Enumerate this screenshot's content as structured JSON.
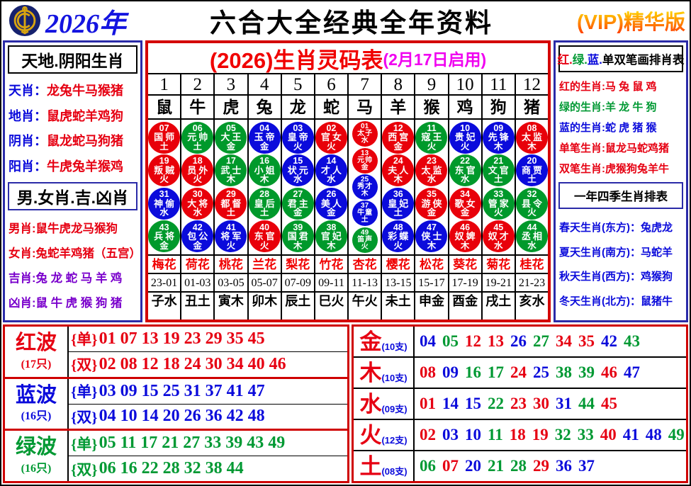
{
  "palette": {
    "red": "#e60012",
    "green": "#009933",
    "blue": "#0b0bdb",
    "purple": "#7a00cc",
    "magenta": "#f000f0",
    "border_red": "#cf0000",
    "border_navy": "#2b2ba8",
    "vip_orange": "#ff7a00"
  },
  "header": {
    "year": "2026年",
    "title": "六合大全经典全年资料",
    "vip": "(VIP)精华版",
    "logo": "coin-emblem-icon"
  },
  "left_panel": {
    "section1": {
      "title": "天地.阴阳生肖",
      "rows": [
        {
          "label": "天肖：",
          "value": "龙兔牛马猴猪",
          "label_color": "blue",
          "value_color": "red"
        },
        {
          "label": "地肖：",
          "value": "鼠虎蛇羊鸡狗",
          "label_color": "blue",
          "value_color": "red"
        },
        {
          "label": "阴肖：",
          "value": "鼠龙蛇马狗猪",
          "label_color": "blue",
          "value_color": "red"
        },
        {
          "label": "阳肖：",
          "value": "牛虎兔羊猴鸡",
          "label_color": "blue",
          "value_color": "red"
        }
      ]
    },
    "section2": {
      "title": "男.女肖.吉.凶肖",
      "rows": [
        {
          "label": "男肖:",
          "value": "鼠牛虎龙马猴狗",
          "label_color": "red",
          "value_color": "red"
        },
        {
          "label": "女肖:",
          "value": "兔蛇羊鸡猪（五宫）",
          "label_color": "red",
          "value_color": "red"
        },
        {
          "label": "吉肖:",
          "value": "兔 龙 蛇 马 羊 鸡",
          "label_color": "purple",
          "value_color": "purple"
        },
        {
          "label": "凶肖:",
          "value": "鼠 牛 虎 猴 狗 猪",
          "label_color": "purple",
          "value_color": "purple"
        }
      ]
    }
  },
  "main_table": {
    "title": "(2026)生肖灵码表",
    "subtitle": "(2月17日启用)",
    "columns": [
      {
        "no": "1",
        "animal": "鼠",
        "balls": [
          [
            "07",
            "国师",
            "土"
          ],
          [
            "19",
            "叛贼",
            "火"
          ],
          [
            "31",
            "神偷",
            "水"
          ],
          [
            "43",
            "兵将",
            "金"
          ]
        ],
        "flower": "梅花",
        "time": "23-01",
        "branch": "子水"
      },
      {
        "no": "2",
        "animal": "牛",
        "balls": [
          [
            "06",
            "元帅",
            "土"
          ],
          [
            "18",
            "员外",
            "火"
          ],
          [
            "30",
            "大将",
            "水"
          ],
          [
            "42",
            "包公",
            "金"
          ]
        ],
        "flower": "荷花",
        "time": "01-03",
        "branch": "丑土"
      },
      {
        "no": "3",
        "animal": "虎",
        "balls": [
          [
            "05",
            "大王",
            "金"
          ],
          [
            "17",
            "武士",
            "木"
          ],
          [
            "29",
            "都督",
            "土"
          ],
          [
            "41",
            "将军",
            "火"
          ]
        ],
        "flower": "桃花",
        "time": "03-05",
        "branch": "寅木"
      },
      {
        "no": "4",
        "animal": "兔",
        "balls": [
          [
            "04",
            "玉帝",
            "金"
          ],
          [
            "16",
            "小姐",
            "木"
          ],
          [
            "28",
            "皇后",
            "土"
          ],
          [
            "40",
            "东官",
            "火"
          ]
        ],
        "flower": "兰花",
        "time": "05-07",
        "branch": "卯木"
      },
      {
        "no": "5",
        "animal": "龙",
        "balls": [
          [
            "03",
            "皇帝",
            "火"
          ],
          [
            "15",
            "状元",
            "水"
          ],
          [
            "27",
            "君主",
            "金"
          ],
          [
            "39",
            "国君",
            "木"
          ]
        ],
        "flower": "梨花",
        "time": "07-09",
        "branch": "辰土"
      },
      {
        "no": "6",
        "animal": "蛇",
        "balls": [
          [
            "02",
            "官女",
            "火"
          ],
          [
            "14",
            "才人",
            "水"
          ],
          [
            "26",
            "美人",
            "金"
          ],
          [
            "38",
            "官妃",
            "木"
          ]
        ],
        "flower": "竹花",
        "time": "09-11",
        "branch": "巳火"
      },
      {
        "no": "7",
        "animal": "马",
        "balls": [
          [
            "01",
            "太子",
            "水"
          ],
          [
            "13",
            "元帅",
            "金"
          ],
          [
            "25",
            "秀才",
            "木"
          ],
          [
            "37",
            "牛童",
            "土"
          ],
          [
            "49",
            "笛声",
            "火"
          ]
        ],
        "flower": "杏花",
        "time": "11-13",
        "branch": "午火"
      },
      {
        "no": "8",
        "animal": "羊",
        "balls": [
          [
            "12",
            "西宫",
            "金"
          ],
          [
            "24",
            "夫人",
            "木"
          ],
          [
            "36",
            "皇妃",
            "土"
          ],
          [
            "48",
            "彩蝶",
            "火"
          ]
        ],
        "flower": "樱花",
        "time": "13-15",
        "branch": "未土"
      },
      {
        "no": "9",
        "animal": "猴",
        "balls": [
          [
            "11",
            "寇王",
            "火"
          ],
          [
            "23",
            "太监",
            "水"
          ],
          [
            "35",
            "游侠",
            "金"
          ],
          [
            "47",
            "侠士",
            "木"
          ]
        ],
        "flower": "松花",
        "time": "15-17",
        "branch": "申金"
      },
      {
        "no": "10",
        "animal": "鸡",
        "balls": [
          [
            "10",
            "贵妃",
            "火"
          ],
          [
            "22",
            "东官",
            "水"
          ],
          [
            "34",
            "歌女",
            "金"
          ],
          [
            "46",
            "奴婢",
            "木"
          ]
        ],
        "flower": "葵花",
        "time": "17-19",
        "branch": "酉金"
      },
      {
        "no": "11",
        "animal": "狗",
        "balls": [
          [
            "09",
            "先锋",
            "木"
          ],
          [
            "21",
            "文官",
            "土"
          ],
          [
            "33",
            "管家",
            "火"
          ],
          [
            "45",
            "奴才",
            "水"
          ]
        ],
        "flower": "菊花",
        "time": "19-21",
        "branch": "戌土"
      },
      {
        "no": "12",
        "animal": "猪",
        "balls": [
          [
            "08",
            "太监",
            "木"
          ],
          [
            "20",
            "商贾",
            "土"
          ],
          [
            "32",
            "县令",
            "火"
          ],
          [
            "44",
            "丞相",
            "水"
          ]
        ],
        "flower": "桂花",
        "time": "21-23",
        "branch": "亥水"
      }
    ]
  },
  "right_panel": {
    "section1": {
      "title_parts": [
        {
          "t": "红.",
          "c": "red"
        },
        {
          "t": "绿.",
          "c": "green"
        },
        {
          "t": "蓝.",
          "c": "blue"
        },
        {
          "t": "单双笔画排肖表",
          "c": "black"
        }
      ],
      "rows": [
        {
          "label": "红的生肖:",
          "value": "马 兔 鼠 鸡",
          "color": "red"
        },
        {
          "label": "绿的生肖:",
          "value": "羊 龙 牛 狗",
          "color": "green"
        },
        {
          "label": "蓝的生肖:",
          "value": "蛇 虎 猪 猴",
          "color": "blue"
        },
        {
          "label": "单笔生肖:",
          "value": "鼠龙马蛇鸡猪",
          "color": "red"
        },
        {
          "label": "双笔生肖:",
          "value": "虎猴狗兔羊牛",
          "color": "red"
        }
      ]
    },
    "section2": {
      "title": "一年四季生肖排表",
      "rows": [
        {
          "label": "春天生肖(东方)：",
          "value": "兔虎龙",
          "color": "blue"
        },
        {
          "label": "夏天生肖(南方)：",
          "value": "马蛇羊",
          "color": "blue"
        },
        {
          "label": "秋天生肖(西方)：",
          "value": "鸡猴狗",
          "color": "blue"
        },
        {
          "label": "冬天生肖(北方)：",
          "value": "鼠猪牛",
          "color": "blue"
        }
      ]
    }
  },
  "odd_label": "{单}",
  "even_label": "{双}",
  "waves": [
    {
      "name": "红波",
      "count": "(17只)",
      "color": "red",
      "odd": "01 07 13 19 23 29 35 45",
      "even": "02 08 12 18 24 30 34 40 46"
    },
    {
      "name": "蓝波",
      "count": "(16只)",
      "color": "blue",
      "odd": "03 09 15 25 31 37 41 47",
      "even": "04 10 14 20 26 36 42 48"
    },
    {
      "name": "绿波",
      "count": "(16只)",
      "color": "green",
      "odd": "05 11 17 21 27 33 39 43 49",
      "even": "06 16 22 28 32 38 44"
    }
  ],
  "elements": [
    {
      "name": "金",
      "count": "(10支)",
      "numbers": "04 05 12 13 26 27 34 35 42 43"
    },
    {
      "name": "木",
      "count": "(10支)",
      "numbers": "08 09 16 17 24 25 38 39 46 47"
    },
    {
      "name": "水",
      "count": "(09支)",
      "numbers": "01 14 15 22 23 30 31 44 45"
    },
    {
      "name": "火",
      "count": "(12支)",
      "numbers": "02 03 10 11 18 19 32 33 40 41 48 49"
    },
    {
      "name": "土",
      "count": "(08支)",
      "numbers": "06 07 20 21 28 29 36 37"
    }
  ]
}
